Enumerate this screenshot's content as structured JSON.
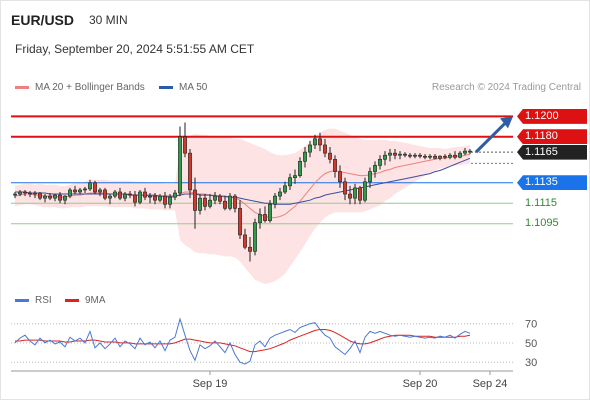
{
  "header": {
    "symbol": "EUR/USD",
    "timeframe": "30 MIN",
    "datetime": "Friday, September 20, 2024 5:51:55 AM CET",
    "credit": "Research © 2024 Trading Central"
  },
  "legend_main": [
    {
      "label": "MA 20 + Bollinger Bands",
      "color": "#f08080"
    },
    {
      "label": "MA 50",
      "color": "#2b5ba8"
    }
  ],
  "legend_rsi": [
    {
      "label": "RSI",
      "color": "#4a78d4"
    },
    {
      "label": "9MA",
      "color": "#dd2222"
    }
  ],
  "levels": [
    {
      "label": "1.1200",
      "value": 1.12,
      "type": "resistance",
      "color": "#dd1111"
    },
    {
      "label": "1.1180",
      "value": 1.118,
      "type": "resistance",
      "color": "#dd1111"
    },
    {
      "label": "1.1165",
      "value": 1.1165,
      "type": "current",
      "color": "#222222"
    },
    {
      "label": "1.1135",
      "value": 1.1135,
      "type": "pivot",
      "color": "#1a73e8"
    },
    {
      "label": "1.1115",
      "value": 1.1115,
      "type": "support",
      "color": "#2e8b2e"
    },
    {
      "label": "1.1095",
      "value": 1.1095,
      "type": "support",
      "color": "#2e8b2e"
    }
  ],
  "chart_data": [
    {
      "type": "candlestick",
      "ylim": [
        1.1037,
        1.1215
      ],
      "x_tick_labels": [
        "Sep 19",
        "Sep 20",
        "Sep 24"
      ],
      "candles": [
        [
          1.1123,
          1.1126,
          1.112,
          1.1124
        ],
        [
          1.1124,
          1.1128,
          1.1122,
          1.1126
        ],
        [
          1.1126,
          1.1128,
          1.1122,
          1.1125
        ],
        [
          1.1125,
          1.1127,
          1.1121,
          1.1124
        ],
        [
          1.1124,
          1.1127,
          1.112,
          1.1125
        ],
        [
          1.1125,
          1.1126,
          1.1118,
          1.112
        ],
        [
          1.112,
          1.1124,
          1.1116,
          1.1122
        ],
        [
          1.1122,
          1.1125,
          1.1118,
          1.112
        ],
        [
          1.112,
          1.1124,
          1.1117,
          1.1123
        ],
        [
          1.1123,
          1.1126,
          1.1115,
          1.1118
        ],
        [
          1.1118,
          1.1123,
          1.1114,
          1.1122
        ],
        [
          1.1122,
          1.113,
          1.112,
          1.1128
        ],
        [
          1.1128,
          1.1132,
          1.1124,
          1.1126
        ],
        [
          1.1126,
          1.113,
          1.1124,
          1.1128
        ],
        [
          1.1128,
          1.1131,
          1.1125,
          1.1129
        ],
        [
          1.1129,
          1.1138,
          1.1127,
          1.1135
        ],
        [
          1.1135,
          1.1137,
          1.1124,
          1.1126
        ],
        [
          1.1126,
          1.113,
          1.1122,
          1.1128
        ],
        [
          1.1128,
          1.113,
          1.1118,
          1.112
        ],
        [
          1.112,
          1.1124,
          1.1114,
          1.1122
        ],
        [
          1.1122,
          1.1128,
          1.112,
          1.1126
        ],
        [
          1.1126,
          1.113,
          1.1118,
          1.112
        ],
        [
          1.112,
          1.1126,
          1.1117,
          1.1124
        ],
        [
          1.1124,
          1.1127,
          1.112,
          1.1123
        ],
        [
          1.1123,
          1.1127,
          1.1112,
          1.1116
        ],
        [
          1.1116,
          1.1128,
          1.1114,
          1.1126
        ],
        [
          1.1126,
          1.113,
          1.1118,
          1.1121
        ],
        [
          1.1121,
          1.1125,
          1.1115,
          1.1122
        ],
        [
          1.1122,
          1.1125,
          1.1114,
          1.1118
        ],
        [
          1.1118,
          1.1124,
          1.1116,
          1.1122
        ],
        [
          1.1122,
          1.1126,
          1.111,
          1.1114
        ],
        [
          1.1114,
          1.1124,
          1.111,
          1.1121
        ],
        [
          1.1121,
          1.1128,
          1.1118,
          1.1125
        ],
        [
          1.1125,
          1.119,
          1.1122,
          1.118
        ],
        [
          1.118,
          1.1194,
          1.116,
          1.1164
        ],
        [
          1.1164,
          1.1168,
          1.112,
          1.1128
        ],
        [
          1.1128,
          1.114,
          1.109,
          1.1108
        ],
        [
          1.1108,
          1.1124,
          1.1104,
          1.112
        ],
        [
          1.112,
          1.1124,
          1.1108,
          1.1112
        ],
        [
          1.1112,
          1.1124,
          1.111,
          1.1118
        ],
        [
          1.1118,
          1.1126,
          1.1114,
          1.1122
        ],
        [
          1.1122,
          1.1124,
          1.1114,
          1.1117
        ],
        [
          1.1117,
          1.1122,
          1.1108,
          1.111
        ],
        [
          1.111,
          1.1125,
          1.1108,
          1.1122
        ],
        [
          1.1122,
          1.1124,
          1.1106,
          1.111
        ],
        [
          1.111,
          1.1118,
          1.108,
          1.1084
        ],
        [
          1.1084,
          1.109,
          1.107,
          1.1072
        ],
        [
          1.1072,
          1.1082,
          1.1058,
          1.1068
        ],
        [
          1.1068,
          1.11,
          1.1064,
          1.1096
        ],
        [
          1.1096,
          1.111,
          1.109,
          1.1104
        ],
        [
          1.1104,
          1.1112,
          1.1096,
          1.1098
        ],
        [
          1.1098,
          1.1118,
          1.1096,
          1.1114
        ],
        [
          1.1114,
          1.1125,
          1.111,
          1.1122
        ],
        [
          1.1122,
          1.113,
          1.1118,
          1.1126
        ],
        [
          1.1126,
          1.1136,
          1.1124,
          1.1132
        ],
        [
          1.1132,
          1.1144,
          1.1128,
          1.114
        ],
        [
          1.114,
          1.1148,
          1.1134,
          1.1142
        ],
        [
          1.1142,
          1.116,
          1.114,
          1.1156
        ],
        [
          1.1156,
          1.117,
          1.115,
          1.1165
        ],
        [
          1.1165,
          1.1176,
          1.116,
          1.1172
        ],
        [
          1.1172,
          1.1182,
          1.1168,
          1.1178
        ],
        [
          1.1178,
          1.1184,
          1.1166,
          1.1172
        ],
        [
          1.1172,
          1.1178,
          1.116,
          1.1164
        ],
        [
          1.1164,
          1.117,
          1.1154,
          1.1158
        ],
        [
          1.1158,
          1.1162,
          1.114,
          1.1146
        ],
        [
          1.1146,
          1.1152,
          1.113,
          1.1136
        ],
        [
          1.1136,
          1.114,
          1.1118,
          1.1124
        ],
        [
          1.1124,
          1.1132,
          1.1114,
          1.112
        ],
        [
          1.112,
          1.1134,
          1.1114,
          1.113
        ],
        [
          1.113,
          1.1132,
          1.1114,
          1.1118
        ],
        [
          1.1118,
          1.114,
          1.1116,
          1.1136
        ],
        [
          1.1136,
          1.115,
          1.113,
          1.1146
        ],
        [
          1.1146,
          1.1156,
          1.114,
          1.1152
        ],
        [
          1.1152,
          1.1162,
          1.1148,
          1.1158
        ],
        [
          1.1158,
          1.1166,
          1.1152,
          1.1162
        ],
        [
          1.1162,
          1.1168,
          1.1156,
          1.1164
        ],
        [
          1.1164,
          1.1168,
          1.1158,
          1.1162
        ],
        [
          1.1162,
          1.1166,
          1.1158,
          1.1163
        ],
        [
          1.1163,
          1.1165,
          1.116,
          1.1162
        ],
        [
          1.1162,
          1.1164,
          1.1159,
          1.1161
        ],
        [
          1.1161,
          1.1164,
          1.1159,
          1.1162
        ],
        [
          1.1162,
          1.1164,
          1.1159,
          1.1161
        ],
        [
          1.1161,
          1.1163,
          1.1158,
          1.116
        ],
        [
          1.116,
          1.1163,
          1.1158,
          1.1161
        ],
        [
          1.1161,
          1.1163,
          1.1158,
          1.1159
        ],
        [
          1.1159,
          1.1162,
          1.1157,
          1.1161
        ],
        [
          1.1161,
          1.1163,
          1.1158,
          1.116
        ],
        [
          1.116,
          1.1164,
          1.1158,
          1.1162
        ],
        [
          1.1162,
          1.1166,
          1.1158,
          1.116
        ],
        [
          1.116,
          1.1166,
          1.1159,
          1.1164
        ],
        [
          1.1164,
          1.1169,
          1.1162,
          1.1166
        ],
        [
          1.1166,
          1.1168,
          1.1163,
          1.1165
        ]
      ],
      "ma20": [
        1.1122,
        1.1123,
        1.1124,
        1.1124,
        1.1123,
        1.1123,
        1.1122,
        1.1122,
        1.1122,
        1.1121,
        1.1121,
        1.1122,
        1.1123,
        1.1123,
        1.1124,
        1.1125,
        1.1125,
        1.1125,
        1.1125,
        1.1124,
        1.1124,
        1.1124,
        1.1124,
        1.1124,
        1.1123,
        1.1123,
        1.1123,
        1.1122,
        1.1122,
        1.1122,
        1.1121,
        1.1121,
        1.1121,
        1.1124,
        1.1126,
        1.1126,
        1.1125,
        1.1124,
        1.1124,
        1.1123,
        1.1123,
        1.1122,
        1.1121,
        1.1121,
        1.112,
        1.1118,
        1.1114,
        1.111,
        1.1106,
        1.1104,
        1.1102,
        1.1101,
        1.1101,
        1.1102,
        1.1104,
        1.1108,
        1.1112,
        1.1117,
        1.1123,
        1.1129,
        1.1135,
        1.114,
        1.1144,
        1.1146,
        1.1147,
        1.1146,
        1.1145,
        1.1144,
        1.1143,
        1.1142,
        1.1142,
        1.1143,
        1.1144,
        1.1145,
        1.1147,
        1.1148,
        1.115,
        1.1151,
        1.1152,
        1.1153,
        1.1154,
        1.1155,
        1.1156,
        1.1157,
        1.1158,
        1.1159,
        1.1159,
        1.116,
        1.1161,
        1.1161,
        1.1162,
        1.1163
      ],
      "ma50": [
        1.1126,
        1.1126,
        1.1126,
        1.1125,
        1.1125,
        1.1125,
        1.1125,
        1.1124,
        1.1124,
        1.1124,
        1.1124,
        1.1124,
        1.1124,
        1.1124,
        1.1124,
        1.1124,
        1.1124,
        1.1124,
        1.1124,
        1.1124,
        1.1124,
        1.1124,
        1.1124,
        1.1123,
        1.1123,
        1.1123,
        1.1123,
        1.1123,
        1.1123,
        1.1122,
        1.1122,
        1.1122,
        1.1122,
        1.1123,
        1.1124,
        1.1124,
        1.1124,
        1.1123,
        1.1123,
        1.1123,
        1.1122,
        1.1122,
        1.1122,
        1.1121,
        1.1121,
        1.112,
        1.1119,
        1.1118,
        1.1117,
        1.1116,
        1.1115,
        1.1115,
        1.1114,
        1.1114,
        1.1114,
        1.1114,
        1.1115,
        1.1116,
        1.1117,
        1.1118,
        1.112,
        1.1121,
        1.1123,
        1.1124,
        1.1125,
        1.1126,
        1.1127,
        1.1128,
        1.1129,
        1.113,
        1.1131,
        1.1132,
        1.1133,
        1.1134,
        1.1135,
        1.1136,
        1.1137,
        1.1138,
        1.1139,
        1.114,
        1.1141,
        1.1142,
        1.1143,
        1.1144,
        1.1146,
        1.1147,
        1.1149,
        1.1151,
        1.1153,
        1.1155,
        1.1157,
        1.1159
      ],
      "bollinger_width": [
        0.001,
        0.001,
        0.001,
        0.001,
        0.001,
        0.0011,
        0.0011,
        0.0011,
        0.0011,
        0.0011,
        0.0011,
        0.0011,
        0.0012,
        0.0012,
        0.0012,
        0.0013,
        0.0013,
        0.0013,
        0.0013,
        0.0013,
        0.0013,
        0.0013,
        0.0013,
        0.0013,
        0.0013,
        0.0013,
        0.0013,
        0.0013,
        0.0013,
        0.0013,
        0.0013,
        0.0013,
        0.0013,
        0.0045,
        0.0052,
        0.0055,
        0.0058,
        0.0058,
        0.0058,
        0.0058,
        0.0058,
        0.0058,
        0.0058,
        0.0058,
        0.0058,
        0.006,
        0.0062,
        0.0064,
        0.0066,
        0.0066,
        0.0066,
        0.0064,
        0.0062,
        0.006,
        0.0058,
        0.0055,
        0.0052,
        0.005,
        0.0048,
        0.0046,
        0.0045,
        0.0044,
        0.0043,
        0.0042,
        0.0041,
        0.004,
        0.0039,
        0.0038,
        0.0037,
        0.0036,
        0.0035,
        0.0034,
        0.0033,
        0.0032,
        0.003,
        0.0028,
        0.0026,
        0.0024,
        0.0022,
        0.002,
        0.0018,
        0.0016,
        0.0014,
        0.0012,
        0.0011,
        0.001,
        0.0009,
        0.0009,
        0.0009,
        0.0009,
        0.0009,
        0.0009
      ],
      "forecast": {
        "from": 1.1165,
        "to": 1.12
      }
    },
    {
      "type": "line",
      "title": "RSI",
      "ylim": [
        25,
        78
      ],
      "ytick_labels": [
        "70",
        "50",
        "30"
      ],
      "yticks": [
        70,
        50,
        30
      ],
      "series": [
        {
          "name": "RSI",
          "values": [
            50,
            55,
            58,
            52,
            48,
            55,
            50,
            53,
            49,
            51,
            46,
            56,
            52,
            55,
            50,
            62,
            45,
            50,
            44,
            49,
            55,
            46,
            52,
            49,
            44,
            55,
            48,
            51,
            45,
            52,
            42,
            53,
            56,
            75,
            58,
            42,
            32,
            48,
            44,
            47,
            52,
            46,
            40,
            50,
            38,
            30,
            28,
            31,
            48,
            52,
            46,
            55,
            58,
            60,
            62,
            64,
            61,
            66,
            68,
            70,
            71,
            64,
            58,
            55,
            46,
            42,
            38,
            44,
            52,
            40,
            56,
            62,
            60,
            62,
            60,
            58,
            57,
            58,
            57,
            56,
            57,
            56,
            55,
            56,
            55,
            57,
            56,
            58,
            55,
            59,
            62,
            60
          ]
        },
        {
          "name": "9MA",
          "values": [
            52,
            52,
            53,
            53,
            53,
            53,
            52,
            52,
            52,
            52,
            51,
            51,
            52,
            52,
            52,
            53,
            53,
            52,
            51,
            51,
            51,
            50,
            50,
            50,
            49,
            49,
            49,
            49,
            49,
            49,
            49,
            49,
            50,
            52,
            54,
            54,
            53,
            52,
            51,
            50,
            50,
            50,
            49,
            48,
            47,
            45,
            43,
            41,
            41,
            42,
            43,
            44,
            46,
            48,
            50,
            53,
            55,
            57,
            59,
            61,
            63,
            64,
            64,
            63,
            61,
            58,
            55,
            52,
            50,
            49,
            49,
            50,
            52,
            54,
            56,
            57,
            58,
            58,
            58,
            58,
            57,
            57,
            57,
            57,
            56,
            56,
            56,
            56,
            56,
            57,
            57,
            58
          ]
        }
      ]
    }
  ]
}
